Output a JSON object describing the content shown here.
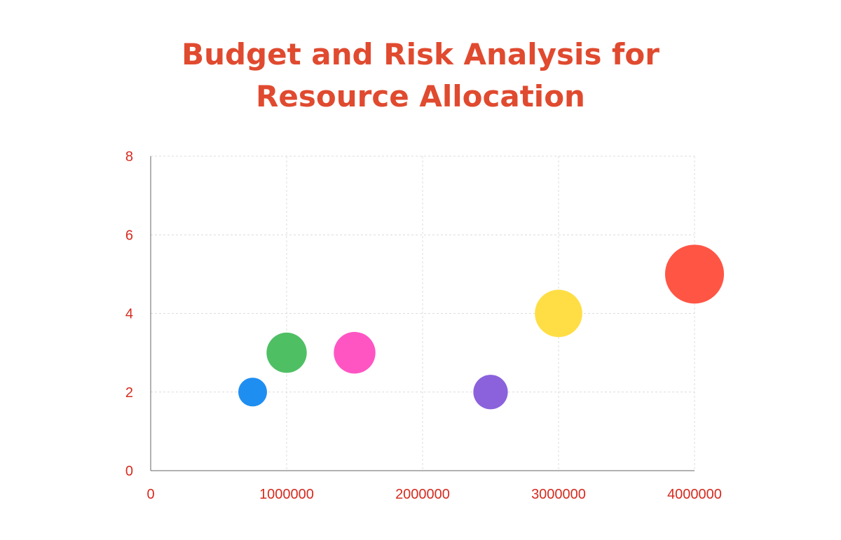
{
  "chart_data": {
    "type": "scatter",
    "title_lines": [
      "Budget and Risk Analysis for",
      "Resource Allocation"
    ],
    "xlabel": "",
    "ylabel": "",
    "xlim": [
      0,
      4000000
    ],
    "ylim": [
      0,
      8
    ],
    "x_ticks": [
      0,
      1000000,
      2000000,
      3000000,
      4000000
    ],
    "y_ticks": [
      0,
      2,
      4,
      6,
      8
    ],
    "grid": true,
    "points": [
      {
        "x": 750000,
        "y": 2,
        "size": 1.0,
        "color": "#1f8ef1"
      },
      {
        "x": 1000000,
        "y": 3,
        "size": 1.4,
        "color": "#4fbf64"
      },
      {
        "x": 1500000,
        "y": 3,
        "size": 1.45,
        "color": "#ff55c3"
      },
      {
        "x": 2500000,
        "y": 2,
        "size": 1.2,
        "color": "#8b62dc"
      },
      {
        "x": 3000000,
        "y": 4,
        "size": 1.65,
        "color": "#ffde45"
      },
      {
        "x": 4000000,
        "y": 5,
        "size": 2.05,
        "color": "#ff5545"
      }
    ]
  }
}
